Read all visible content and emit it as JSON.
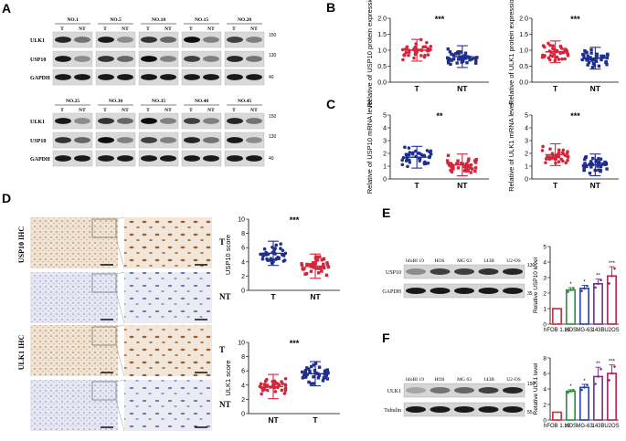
{
  "panels": {
    "A": {
      "letter": "A",
      "row1_samples": [
        "NO.1",
        "NO.5",
        "NO.10",
        "NO.15",
        "NO.20"
      ],
      "row2_samples": [
        "NO.25",
        "NO.30",
        "NO.35",
        "NO.40",
        "NO.45"
      ],
      "lane_labels": [
        "T",
        "NT"
      ],
      "row1_bands": [
        "ULK1",
        "USP10",
        "GAPDH"
      ],
      "row2_bands": [
        "ULK1",
        "USP10",
        "GAPDH"
      ],
      "row1_markers": [
        "150",
        "130",
        "40"
      ],
      "row2_markers": [
        "150",
        "130",
        "40"
      ]
    },
    "B": {
      "letter": "B",
      "plot1": {
        "ylabel": "Relative of USP10 protein expression",
        "sig": "***",
        "groups": [
          "T",
          "NT"
        ],
        "ylim": [
          0.0,
          2.0
        ],
        "yticks": [
          "0.0",
          "0.5",
          "1.0",
          "1.5",
          "2.0"
        ],
        "means": [
          1.0,
          0.8
        ],
        "colors": [
          "#d4263a",
          "#1f2f8f"
        ],
        "n": [
          40,
          40
        ]
      },
      "plot2": {
        "ylabel": "Relative of ULK1 protein expression",
        "sig": "***",
        "groups": [
          "T",
          "NT"
        ],
        "ylim": [
          0.0,
          2.0
        ],
        "yticks": [
          "0.0",
          "0.5",
          "1.0",
          "1.5",
          "2.0"
        ],
        "means": [
          0.95,
          0.75
        ],
        "colors": [
          "#d4263a",
          "#1f2f8f"
        ],
        "n": [
          40,
          40
        ]
      }
    },
    "C": {
      "letter": "C",
      "plot1": {
        "ylabel": "Relative of USP10 mRNA level",
        "sig": "**",
        "groups": [
          "T",
          "NT"
        ],
        "ylim": [
          0,
          5
        ],
        "yticks": [
          "0",
          "1",
          "2",
          "3",
          "4",
          "5"
        ],
        "means": [
          1.7,
          1.1
        ],
        "colors": [
          "#1f2f8f",
          "#d4263a"
        ],
        "n": [
          40,
          40
        ]
      },
      "plot2": {
        "ylabel": "Relative of ULK1 mRNA level",
        "sig": "***",
        "groups": [
          "T",
          "NT"
        ],
        "ylim": [
          0,
          5
        ],
        "yticks": [
          "0",
          "1",
          "2",
          "3",
          "4",
          "5"
        ],
        "means": [
          1.9,
          1.1
        ],
        "colors": [
          "#d4263a",
          "#1f2f8f"
        ],
        "n": [
          40,
          40
        ]
      }
    },
    "D": {
      "letter": "D",
      "row_labels": [
        "USP10 IHC",
        "ULK1 IHC"
      ],
      "tissue_labels": [
        "T",
        "NT",
        "T",
        "NT"
      ],
      "plot1": {
        "ylabel": "USP10 score",
        "sig": "***",
        "groups": [
          "T",
          "NT"
        ],
        "ylim": [
          0,
          10
        ],
        "yticks": [
          "0",
          "2",
          "4",
          "6",
          "8",
          "10"
        ],
        "means": [
          5.2,
          3.4
        ],
        "colors": [
          "#1f2f8f",
          "#d4263a"
        ],
        "n": [
          40,
          40
        ]
      },
      "plot2": {
        "ylabel": "ULK1 score",
        "sig": "***",
        "groups": [
          "NT",
          "T"
        ],
        "ylim": [
          0,
          10
        ],
        "yticks": [
          "0",
          "2",
          "4",
          "6",
          "8",
          "10"
        ],
        "means": [
          3.8,
          5.6
        ],
        "colors": [
          "#d4263a",
          "#1f2f8f"
        ],
        "n": [
          40,
          40
        ]
      }
    },
    "E": {
      "letter": "E",
      "cell_lines": [
        "hfoBI 19",
        "HOS",
        "MG 63",
        "143B",
        "U2-OS"
      ],
      "bands": [
        "USP10",
        "GAPDH"
      ],
      "markers": [
        "130",
        "35"
      ],
      "bar": {
        "ylabel": "Relative USP10 level",
        "categories": [
          "hFOB 1.19",
          "HOS",
          "MG-63",
          "143B",
          "U2OS"
        ],
        "values": [
          1.0,
          2.2,
          2.3,
          2.6,
          3.1
        ],
        "errors": [
          0.0,
          0.15,
          0.2,
          0.3,
          0.6
        ],
        "sig": [
          "",
          "*",
          "*",
          "**",
          "***"
        ],
        "ylim": [
          0,
          5
        ],
        "yticks": [
          "0",
          "1",
          "2",
          "3",
          "4",
          "5"
        ],
        "colors": [
          "#d4263a",
          "#2e8b3e",
          "#2c3fa8",
          "#7a2f8f",
          "#b31f5a"
        ]
      }
    },
    "F": {
      "letter": "F",
      "cell_lines": [
        "hfoBI 19",
        "HOS",
        "MG 63",
        "143B",
        "U2-OS"
      ],
      "bands": [
        "ULK1",
        "Tubulin"
      ],
      "markers": [
        "150",
        "55"
      ],
      "bar": {
        "ylabel": "Relative ULK1 level",
        "categories": [
          "hFOB 1.19",
          "HOS",
          "MG-63",
          "143B",
          "U2OS"
        ],
        "values": [
          1.0,
          3.7,
          4.2,
          5.6,
          6.0
        ],
        "errors": [
          0.0,
          0.2,
          0.4,
          1.2,
          1.1
        ],
        "sig": [
          "",
          "*",
          "*",
          "**",
          "***"
        ],
        "ylim": [
          0,
          8
        ],
        "yticks": [
          "0",
          "2",
          "4",
          "6",
          "8"
        ],
        "colors": [
          "#d4263a",
          "#2e8b3e",
          "#2c3fa8",
          "#7a2f8f",
          "#b31f5a"
        ]
      }
    }
  }
}
